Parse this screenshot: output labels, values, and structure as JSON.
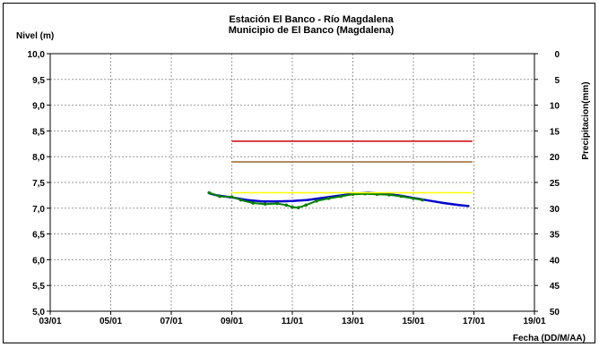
{
  "chart_data": {
    "type": "line",
    "title": "Estación El Banco - Río Magdalena",
    "subtitle": "Municipio de El Banco (Magdalena)",
    "ylabel": "Nivel (m)",
    "y2label": "Precipitacion(mm)",
    "xlabel": "Fecha (DD/M/AA)",
    "x_ticks": [
      "03/01",
      "05/01",
      "07/01",
      "09/01",
      "11/01",
      "13/01",
      "15/01",
      "17/01",
      "19/01"
    ],
    "x_range_days": [
      3,
      19
    ],
    "ylim": [
      5.0,
      10.0
    ],
    "y_ticks": [
      "5,0",
      "5,5",
      "6,0",
      "6,5",
      "7,0",
      "7,5",
      "8,0",
      "8,5",
      "9,0",
      "9,5",
      "10,0"
    ],
    "y2lim": [
      50,
      0
    ],
    "y2_ticks": [
      "0",
      "5",
      "10",
      "15",
      "20",
      "25",
      "30",
      "35",
      "40",
      "45",
      "50"
    ],
    "grid": true,
    "series": [
      {
        "role": "level_observed",
        "color": "#0000cc",
        "x": [
          8.25,
          8.5,
          9.0,
          9.5,
          10.0,
          10.5,
          11.0,
          11.5,
          12.0,
          12.5,
          13.0,
          13.5,
          14.0,
          14.5,
          15.0,
          15.5,
          16.0,
          16.5,
          16.85
        ],
        "y": [
          7.29,
          7.25,
          7.21,
          7.16,
          7.13,
          7.13,
          7.14,
          7.16,
          7.2,
          7.24,
          7.28,
          7.3,
          7.28,
          7.25,
          7.2,
          7.15,
          7.1,
          7.06,
          7.04
        ]
      },
      {
        "role": "level_forecast",
        "color": "#008000",
        "x": [
          8.25,
          8.6,
          9.0,
          9.3,
          9.7,
          10.1,
          10.5,
          10.8,
          11.0,
          11.2,
          11.45,
          11.8,
          12.2,
          12.6,
          13.0,
          13.4,
          13.8,
          14.2,
          14.6,
          15.0,
          15.3
        ],
        "y": [
          7.3,
          7.23,
          7.22,
          7.16,
          7.1,
          7.08,
          7.09,
          7.06,
          7.02,
          7.01,
          7.06,
          7.14,
          7.19,
          7.23,
          7.27,
          7.28,
          7.27,
          7.26,
          7.23,
          7.19,
          7.16
        ]
      },
      {
        "role": "threshold_red",
        "color": "#cc0000",
        "x": [
          9.0,
          16.95
        ],
        "y": [
          8.3,
          8.3
        ]
      },
      {
        "role": "threshold_orange",
        "color": "#996633",
        "x": [
          9.0,
          16.95
        ],
        "y": [
          7.9,
          7.9
        ]
      },
      {
        "role": "threshold_yellow",
        "color": "#ffff00",
        "x": [
          9.0,
          16.95
        ],
        "y": [
          7.3,
          7.3
        ]
      }
    ]
  }
}
